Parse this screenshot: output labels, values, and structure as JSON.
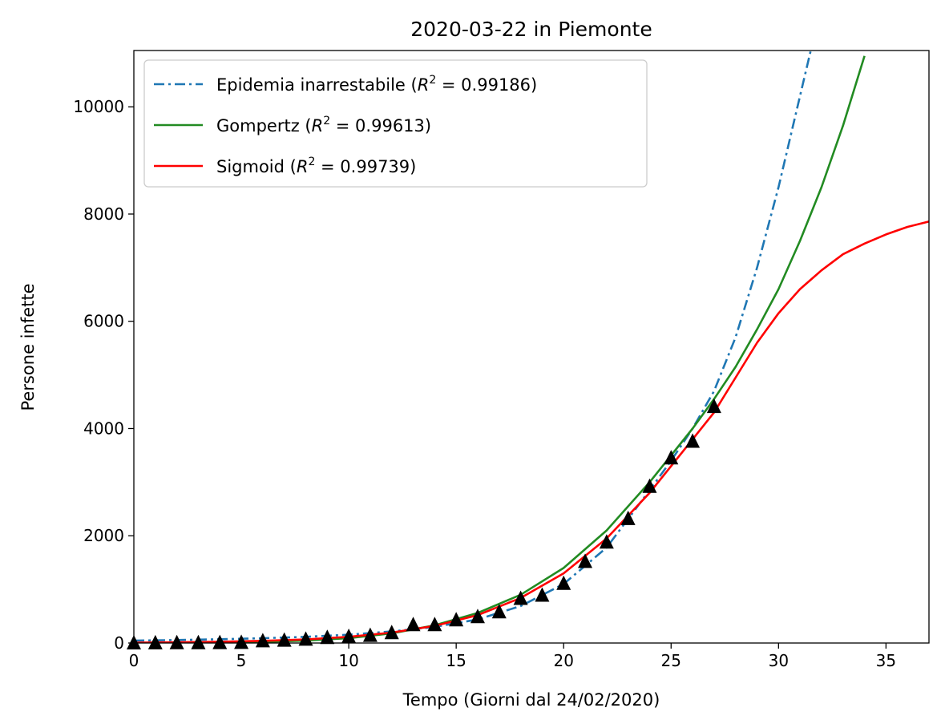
{
  "chart_data": {
    "type": "line",
    "title": "2020-03-22 in Piemonte",
    "xlabel": "Tempo (Giorni dal 24/02/2020)",
    "ylabel": "Persone infette",
    "xlim": [
      0,
      37
    ],
    "ylim": [
      0,
      11050
    ],
    "xticks": [
      0,
      5,
      10,
      15,
      20,
      25,
      30,
      35
    ],
    "yticks": [
      0,
      2000,
      4000,
      6000,
      8000,
      10000
    ],
    "grid": false,
    "legend_position": "top-left",
    "series": [
      {
        "name": "Epidemia inarrestabile (R² = 0.99186)",
        "label_prefix": "Epidemia inarrestabile (",
        "r2": "0.99186",
        "color": "#1f77b4",
        "style": "dashdot",
        "x": [
          0,
          2,
          4,
          6,
          8,
          10,
          12,
          14,
          16,
          18,
          20,
          22,
          24,
          25,
          26,
          27,
          28,
          29,
          30,
          31,
          31.5
        ],
        "y": [
          45,
          55,
          70,
          90,
          115,
          155,
          215,
          300,
          440,
          690,
          1100,
          1780,
          2850,
          3400,
          4000,
          4700,
          5700,
          7000,
          8500,
          10200,
          11050
        ]
      },
      {
        "name": "Gompertz (R² = 0.99613)",
        "label_prefix": "Gompertz (",
        "r2": "0.99613",
        "color": "#228b22",
        "style": "solid",
        "x": [
          0,
          2,
          4,
          6,
          8,
          10,
          12,
          14,
          16,
          18,
          20,
          22,
          24,
          26,
          27,
          28,
          29,
          30,
          31,
          32,
          33,
          34
        ],
        "y": [
          2,
          4,
          8,
          20,
          45,
          90,
          180,
          330,
          560,
          900,
          1400,
          2100,
          3000,
          4000,
          4550,
          5150,
          5850,
          6600,
          7500,
          8500,
          9650,
          10950
        ]
      },
      {
        "name": "Sigmoid (R² = 0.99739)",
        "label_prefix": "Sigmoid (",
        "r2": "0.99739",
        "color": "#ff0000",
        "style": "solid",
        "x": [
          0,
          2,
          4,
          6,
          8,
          10,
          12,
          14,
          16,
          18,
          20,
          22,
          24,
          26,
          27,
          28,
          29,
          30,
          31,
          32,
          33,
          34,
          35,
          36,
          37
        ],
        "y": [
          8,
          14,
          24,
          40,
          68,
          115,
          195,
          320,
          520,
          840,
          1300,
          1950,
          2800,
          3800,
          4300,
          4950,
          5600,
          6150,
          6600,
          6950,
          7250,
          7450,
          7620,
          7760,
          7860
        ]
      }
    ],
    "observed": {
      "marker": "triangle",
      "color": "#000000",
      "x": [
        0,
        1,
        2,
        3,
        4,
        5,
        6,
        7,
        8,
        9,
        10,
        11,
        12,
        13,
        14,
        15,
        16,
        17,
        18,
        19,
        20,
        21,
        22,
        23,
        24,
        25,
        26,
        27
      ],
      "y": [
        0,
        2,
        3,
        3,
        6,
        10,
        40,
        50,
        70,
        100,
        120,
        140,
        190,
        340,
        340,
        430,
        490,
        580,
        830,
        890,
        1110,
        1520,
        1880,
        2320,
        2920,
        3450,
        3760,
        4410
      ]
    }
  }
}
